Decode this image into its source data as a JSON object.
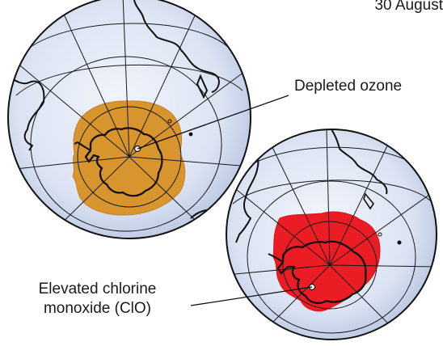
{
  "date_label": "30 August",
  "labels": {
    "ozone": "Depleted ozone",
    "clo_line1": "Elevated chlorine",
    "clo_line2": "monoxide (ClO)"
  },
  "colors": {
    "ozone_region": "#d8952e",
    "clo_region": "#ec1c24",
    "globe_ocean": "#e2e9f6",
    "graticule": "#1a1a1a",
    "coastline": "#111111"
  },
  "globes": [
    {
      "name": "ozone-globe",
      "region_label": "Depleted ozone"
    },
    {
      "name": "clo-globe",
      "region_label": "Elevated chlorine monoxide (ClO)"
    }
  ]
}
